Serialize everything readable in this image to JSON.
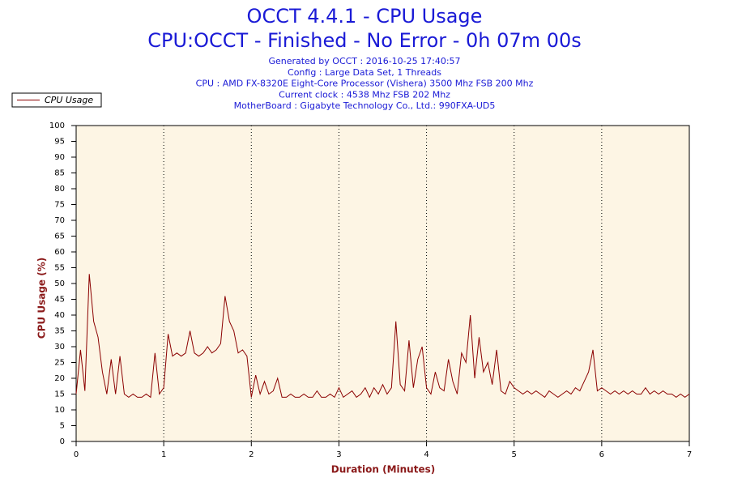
{
  "chart_data": {
    "type": "line",
    "title": "OCCT 4.4.1 - CPU Usage",
    "subtitle": "CPU:OCCT - Finished - No Error - 0h 07m 00s",
    "info": [
      "Generated by OCCT : 2016-10-25 17:40:57",
      "Config : Large Data Set, 1 Threads",
      "CPU : AMD FX-8320E Eight-Core Processor (Vishera) 3500 Mhz FSB 200 Mhz",
      "Current clock : 4538 Mhz FSB 202 Mhz",
      "MotherBoard : Gigabyte Technology Co., Ltd.: 990FXA-UD5"
    ],
    "x_label": "Duration (Minutes)",
    "y_label": "CPU Usage (%)",
    "legend": "upper left",
    "grid": true,
    "xlim": [
      0,
      7
    ],
    "xticks": [
      0,
      1,
      2,
      3,
      4,
      5,
      6,
      7
    ],
    "ylim": [
      0,
      100
    ],
    "yticks": [
      0,
      5,
      10,
      15,
      20,
      25,
      30,
      35,
      40,
      45,
      50,
      55,
      60,
      65,
      70,
      75,
      80,
      85,
      90,
      95,
      100
    ],
    "x": [
      0,
      0.05,
      0.1,
      0.15,
      0.2,
      0.25,
      0.3,
      0.35,
      0.4,
      0.45,
      0.5,
      0.55,
      0.6,
      0.65,
      0.7,
      0.75,
      0.8,
      0.85,
      0.9,
      0.95,
      1,
      1.05,
      1.1,
      1.15,
      1.2,
      1.25,
      1.3,
      1.35,
      1.4,
      1.45,
      1.5,
      1.55,
      1.6,
      1.65,
      1.7,
      1.75,
      1.8,
      1.85,
      1.9,
      1.95,
      2,
      2.05,
      2.1,
      2.15,
      2.2,
      2.25,
      2.3,
      2.35,
      2.4,
      2.45,
      2.5,
      2.55,
      2.6,
      2.65,
      2.7,
      2.75,
      2.8,
      2.85,
      2.9,
      2.95,
      3,
      3.05,
      3.1,
      3.15,
      3.2,
      3.25,
      3.3,
      3.35,
      3.4,
      3.45,
      3.5,
      3.55,
      3.6,
      3.65,
      3.7,
      3.75,
      3.8,
      3.85,
      3.9,
      3.95,
      4,
      4.05,
      4.1,
      4.15,
      4.2,
      4.25,
      4.3,
      4.35,
      4.4,
      4.45,
      4.5,
      4.55,
      4.6,
      4.65,
      4.7,
      4.75,
      4.8,
      4.85,
      4.9,
      4.95,
      5,
      5.05,
      5.1,
      5.15,
      5.2,
      5.25,
      5.3,
      5.35,
      5.4,
      5.45,
      5.5,
      5.55,
      5.6,
      5.65,
      5.7,
      5.75,
      5.8,
      5.85,
      5.9,
      5.95,
      6,
      6.05,
      6.1,
      6.15,
      6.2,
      6.25,
      6.3,
      6.35,
      6.4,
      6.45,
      6.5,
      6.55,
      6.6,
      6.65,
      6.7,
      6.75,
      6.8,
      6.85,
      6.9,
      6.95,
      7
    ],
    "series": [
      {
        "name": "CPU Usage",
        "color": "#8b0000",
        "values": [
          15,
          29,
          16,
          53,
          38,
          33,
          22,
          15,
          26,
          15,
          27,
          15,
          14,
          15,
          14,
          14,
          15,
          14,
          28,
          15,
          17,
          34,
          27,
          28,
          27,
          28,
          35,
          28,
          27,
          28,
          30,
          28,
          29,
          31,
          46,
          38,
          35,
          28,
          29,
          27,
          14,
          21,
          15,
          19,
          15,
          16,
          20,
          14,
          14,
          15,
          14,
          14,
          15,
          14,
          14,
          16,
          14,
          14,
          15,
          14,
          17,
          14,
          15,
          16,
          14,
          15,
          17,
          14,
          17,
          15,
          18,
          15,
          17,
          38,
          18,
          16,
          32,
          17,
          26,
          30,
          17,
          15,
          22,
          17,
          16,
          26,
          19,
          15,
          28,
          25,
          40,
          20,
          33,
          22,
          25,
          18,
          29,
          16,
          15,
          19,
          17,
          16,
          15,
          16,
          15,
          16,
          15,
          14,
          16,
          15,
          14,
          15,
          16,
          15,
          17,
          16,
          19,
          22,
          29,
          16,
          17,
          16,
          15,
          16,
          15,
          16,
          15,
          16,
          15,
          15,
          17,
          15,
          16,
          15,
          16,
          15,
          15,
          14,
          15,
          14,
          15
        ]
      }
    ]
  }
}
